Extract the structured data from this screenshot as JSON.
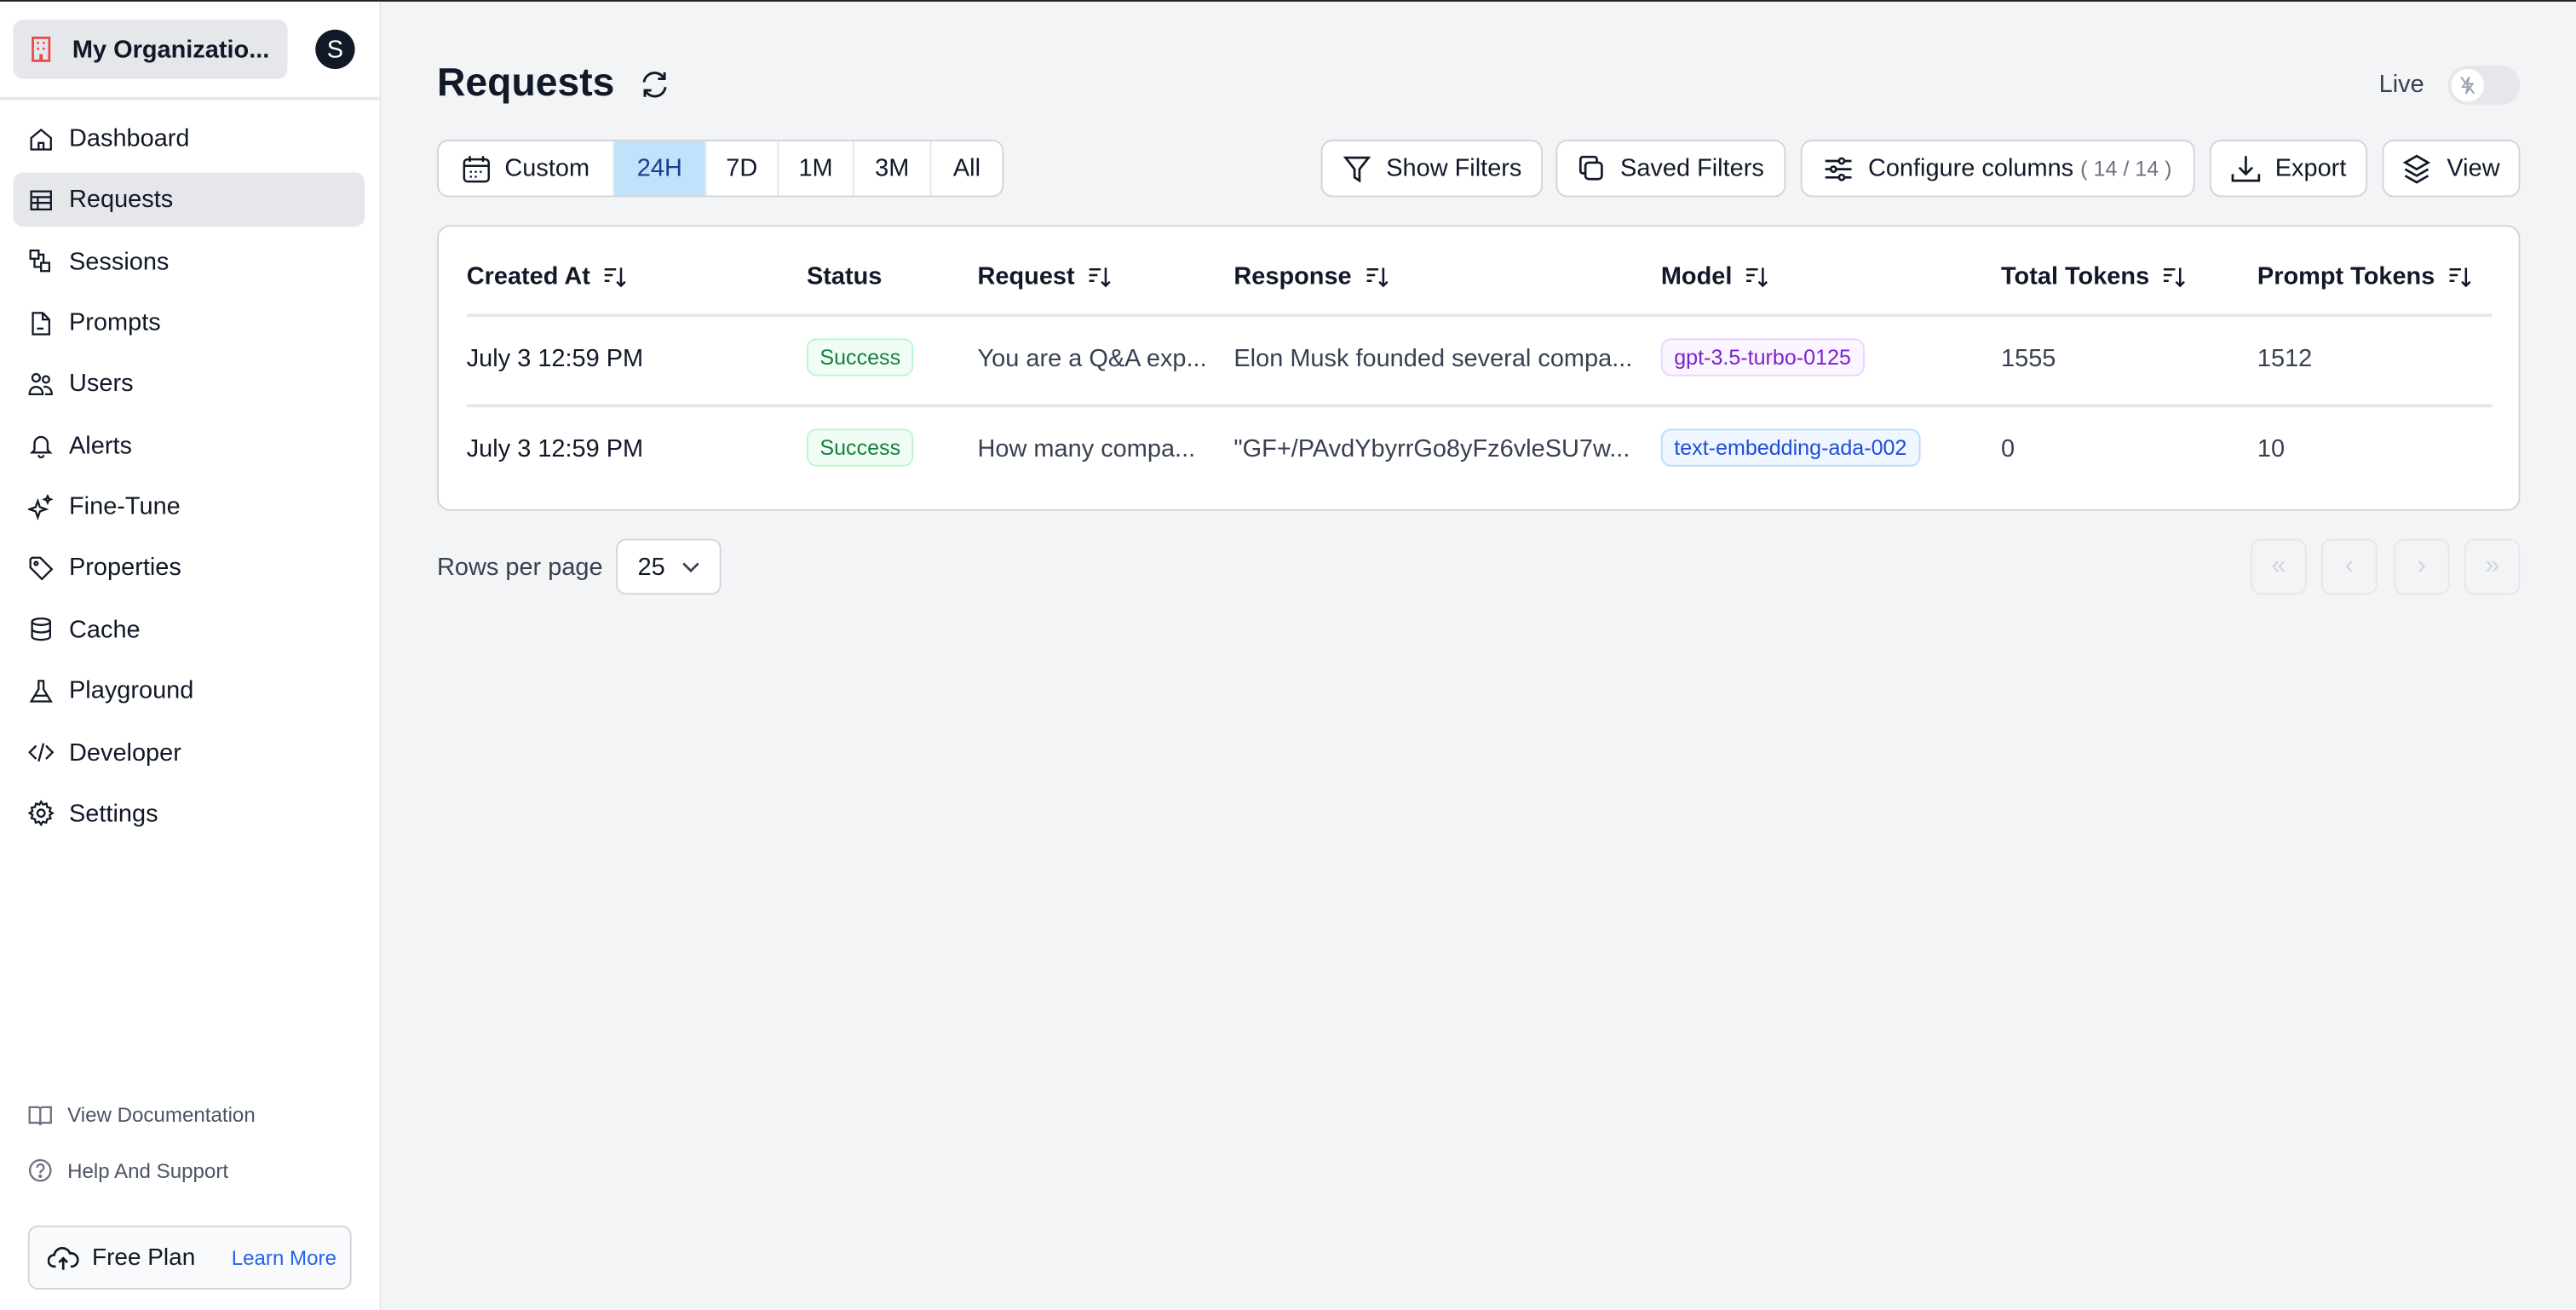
{
  "colors": {
    "accent": "#bfe3fa",
    "success_bg": "#f0fdf4",
    "success_text": "#15803d",
    "purple": "#7e22ce",
    "blue": "#1d4ed8"
  },
  "sidebar": {
    "org_name": "My Organizatio...",
    "avatar_initial": "S",
    "items": [
      {
        "label": "Dashboard",
        "icon": "home-icon"
      },
      {
        "label": "Requests",
        "icon": "table-icon",
        "active": true
      },
      {
        "label": "Sessions",
        "icon": "sessions-icon"
      },
      {
        "label": "Prompts",
        "icon": "document-icon"
      },
      {
        "label": "Users",
        "icon": "users-icon"
      },
      {
        "label": "Alerts",
        "icon": "bell-icon"
      },
      {
        "label": "Fine-Tune",
        "icon": "sparkles-icon"
      },
      {
        "label": "Properties",
        "icon": "tag-icon"
      },
      {
        "label": "Cache",
        "icon": "database-icon"
      },
      {
        "label": "Playground",
        "icon": "flask-icon"
      },
      {
        "label": "Developer",
        "icon": "code-icon"
      },
      {
        "label": "Settings",
        "icon": "gear-icon"
      }
    ],
    "footer": {
      "docs": "View Documentation",
      "help": "Help And Support",
      "plan": "Free Plan",
      "learn_more": "Learn More"
    }
  },
  "header": {
    "title": "Requests",
    "live_label": "Live",
    "live_on": false
  },
  "toolbar": {
    "ranges": [
      "Custom",
      "24H",
      "7D",
      "1M",
      "3M",
      "All"
    ],
    "selected_range": "24H",
    "show_filters": "Show Filters",
    "saved_filters": "Saved Filters",
    "configure_columns": "Configure columns",
    "column_count": "( 14 / 14 )",
    "export": "Export",
    "view": "View"
  },
  "table": {
    "columns": [
      "Created At",
      "Status",
      "Request",
      "Response",
      "Model",
      "Total Tokens",
      "Prompt Tokens"
    ],
    "rows": [
      {
        "created_at": "July 3 12:59 PM",
        "status": "Success",
        "request": "You are a Q&A exp...",
        "response": "Elon Musk founded several compa...",
        "model": "gpt-3.5-turbo-0125",
        "total_tokens": "1555",
        "prompt_tokens": "1512"
      },
      {
        "created_at": "July 3 12:59 PM",
        "status": "Success",
        "request": "How many compa...",
        "response": "\"GF+/PAvdYbyrrGo8yFz6vleSU7w...",
        "model": "text-embedding-ada-002",
        "total_tokens": "0",
        "prompt_tokens": "10"
      }
    ]
  },
  "pagination": {
    "rows_per_page_label": "Rows per page",
    "rows_per_page": "25"
  }
}
